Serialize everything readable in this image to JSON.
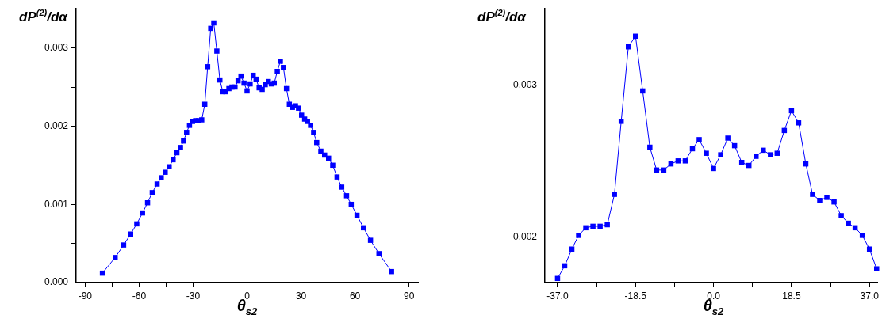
{
  "chart_data": [
    {
      "type": "line",
      "xlabel": "θ$_{s2}$",
      "ylabel": "dP$^{(2)}$/dα",
      "marker": "square",
      "line_style": "solid",
      "grid": false,
      "legend": false,
      "xlim": [
        -95,
        95
      ],
      "ylim": [
        0,
        0.0035
      ],
      "xticks": [
        -90,
        {
          "value": -75,
          "label": null
        },
        -60,
        {
          "value": -45,
          "label": null
        },
        -30,
        {
          "value": -15,
          "label": null
        },
        0,
        {
          "value": 15,
          "label": null
        },
        30,
        {
          "value": 45,
          "label": null
        },
        60,
        {
          "value": 75,
          "label": null
        },
        90
      ],
      "yticks": [
        {
          "value": 0,
          "label": "0.000"
        },
        {
          "value": 0.0005,
          "label": null
        },
        {
          "value": 0.001,
          "label": "0.001"
        },
        {
          "value": 0.0015,
          "label": null
        },
        {
          "value": 0.002,
          "label": "0.002"
        },
        {
          "value": 0.0025,
          "label": null
        },
        {
          "value": 0.003,
          "label": "0.003"
        }
      ],
      "series": [
        {
          "color": "#0000ff",
          "x": [
            -80.4,
            -73.3,
            -68.6,
            -64.7,
            -61.3,
            -58.1,
            -55.3,
            -52.7,
            -50.0,
            -47.7,
            -45.5,
            -43.3,
            -41.1,
            -39.0,
            -37.0,
            -35.3,
            -33.6,
            -32.0,
            -30.3,
            -28.6,
            -26.9,
            -25.2,
            -23.5,
            -21.9,
            -20.2,
            -18.5,
            -16.8,
            -15.1,
            -13.5,
            -11.8,
            -10.1,
            -8.4,
            -6.7,
            -5.0,
            -3.4,
            -1.7,
            0,
            1.7,
            3.4,
            5.0,
            6.7,
            8.4,
            10.1,
            11.8,
            13.5,
            15.1,
            16.8,
            18.5,
            20.2,
            21.9,
            23.5,
            25.2,
            26.9,
            28.6,
            30.3,
            32.0,
            33.6,
            35.3,
            37.0,
            38.7,
            41.0,
            43.1,
            45.3,
            47.6,
            50.0,
            52.6,
            55.3,
            57.9,
            61.1,
            64.7,
            68.6,
            73.3,
            80.3
          ],
          "values": [
            0.00012,
            0.00032,
            0.00048,
            0.00062,
            0.00075,
            0.00089,
            0.00102,
            0.00115,
            0.00126,
            0.00134,
            0.00141,
            0.00148,
            0.00157,
            0.00166,
            0.001727,
            0.00181,
            0.00192,
            0.00201,
            0.00206,
            0.00207,
            0.00207,
            0.00208,
            0.00228,
            0.00276,
            0.00325,
            0.00332,
            0.00296,
            0.00259,
            0.00244,
            0.00244,
            0.00248,
            0.0025,
            0.0025,
            0.00258,
            0.00264,
            0.00255,
            0.00245,
            0.00254,
            0.00265,
            0.0026,
            0.00249,
            0.00247,
            0.00253,
            0.00257,
            0.00254,
            0.00255,
            0.0027,
            0.00283,
            0.00275,
            0.00248,
            0.00228,
            0.00224,
            0.00226,
            0.00223,
            0.00214,
            0.00209,
            0.00206,
            0.00201,
            0.00192,
            0.00179,
            0.00168,
            0.00163,
            0.00159,
            0.0015,
            0.00135,
            0.00122,
            0.00111,
            0.001,
            0.00086,
            0.0007,
            0.00054,
            0.00037,
            0.00014
          ]
        }
      ]
    },
    {
      "type": "line",
      "xlabel": "θ$_{s2}$",
      "ylabel": "dP$^{(2)}$/dα",
      "marker": "square",
      "line_style": "solid",
      "grid": false,
      "legend": false,
      "xlim": [
        -40,
        39
      ],
      "ylim": [
        0.0017,
        0.0035
      ],
      "xticks": [
        {
          "value": -37,
          "label": "-37.0"
        },
        {
          "value": -27.75,
          "label": null
        },
        {
          "value": -18.5,
          "label": "-18.5"
        },
        {
          "value": -9.25,
          "label": null
        },
        {
          "value": 0,
          "label": "0.0"
        },
        {
          "value": 9.25,
          "label": null
        },
        {
          "value": 18.5,
          "label": "18.5"
        },
        {
          "value": 27.75,
          "label": null
        },
        {
          "value": 37,
          "label": "37.0"
        }
      ],
      "yticks": [
        {
          "value": 0.002,
          "label": "0.002"
        },
        {
          "value": 0.0025,
          "label": null
        },
        {
          "value": 0.003,
          "label": "0.003"
        }
      ],
      "series": [
        {
          "color": "#0000ff",
          "x": [
            -37.0,
            -35.3,
            -33.6,
            -32.0,
            -30.3,
            -28.6,
            -26.9,
            -25.2,
            -23.5,
            -21.9,
            -20.2,
            -18.5,
            -16.8,
            -15.1,
            -13.5,
            -11.8,
            -10.1,
            -8.4,
            -6.7,
            -5.0,
            -3.4,
            -1.7,
            0,
            1.7,
            3.4,
            5.0,
            6.7,
            8.4,
            10.1,
            11.8,
            13.5,
            15.1,
            16.8,
            18.5,
            20.2,
            21.9,
            23.5,
            25.2,
            26.9,
            28.6,
            30.3,
            32.0,
            33.6,
            35.3,
            37.0,
            38.7
          ],
          "values": [
            0.001727,
            0.00181,
            0.00192,
            0.00201,
            0.00206,
            0.00207,
            0.00207,
            0.00208,
            0.00228,
            0.00276,
            0.00325,
            0.00332,
            0.00296,
            0.00259,
            0.00244,
            0.00244,
            0.00248,
            0.0025,
            0.0025,
            0.00258,
            0.00264,
            0.00255,
            0.00245,
            0.00254,
            0.00265,
            0.0026,
            0.00249,
            0.00247,
            0.00253,
            0.00257,
            0.00254,
            0.00255,
            0.0027,
            0.00283,
            0.00275,
            0.00248,
            0.00228,
            0.00224,
            0.00226,
            0.00223,
            0.00214,
            0.00209,
            0.00206,
            0.00201,
            0.00192,
            0.00179
          ]
        }
      ]
    }
  ]
}
